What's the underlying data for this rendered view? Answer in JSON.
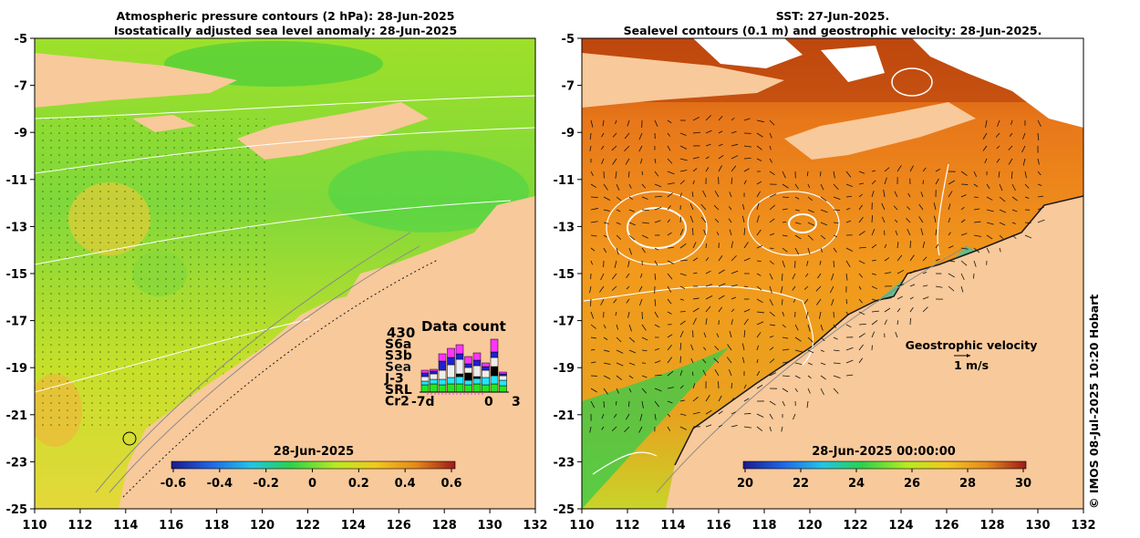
{
  "left_panel": {
    "title_lines": [
      "Atmospheric pressure contours (2 hPa): 28-Jun-2025",
      "Isostatically adjusted sea level anomaly: 28-Jun-2025"
    ],
    "colorbar": {
      "label": "28-Jun-2025",
      "ticks": [
        "-0.6",
        "-0.4",
        "-0.2",
        "0",
        "0.2",
        "0.4",
        "0.6"
      ],
      "colors": [
        "#1a1a8c",
        "#1f66e6",
        "#22c3e6",
        "#2ad24a",
        "#b8ea22",
        "#f2c81e",
        "#e68a1a",
        "#9e1a1a"
      ]
    },
    "data_count": {
      "title": "Data count",
      "max": "430",
      "missions": [
        {
          "name": "S6a",
          "color": "#ff33ff"
        },
        {
          "name": "S3b",
          "color": "#1f1fd6"
        },
        {
          "name": "Sea",
          "color": "#eeeeee"
        },
        {
          "name": "J-3",
          "color": "#000000"
        },
        {
          "name": "SRL",
          "color": "#22e6ff"
        },
        {
          "name": "Cr2",
          "color": "#22e622"
        }
      ],
      "axis": [
        "-7d",
        "0",
        "3"
      ]
    }
  },
  "right_panel": {
    "title_lines": [
      "SST: 27-Jun-2025.",
      "Sealevel contours (0.1 m) and geostrophic velocity: 28-Jun-2025."
    ],
    "colorbar": {
      "label": "28-Jun-2025 00:00:00",
      "ticks": [
        "20",
        "22",
        "24",
        "26",
        "28",
        "30"
      ],
      "colors": [
        "#1a1a8c",
        "#1f66e6",
        "#22c3e6",
        "#2ad24a",
        "#b8ea22",
        "#f2c81e",
        "#e68a1a",
        "#9e1a1a"
      ]
    },
    "velocity_legend": {
      "title": "Geostrophic velocity",
      "scale": "1 m/s"
    }
  },
  "axes": {
    "lat_ticks": [
      "-5",
      "-7",
      "-9",
      "-11",
      "-13",
      "-15",
      "-17",
      "-19",
      "-21",
      "-23",
      "-25"
    ],
    "lon_ticks": [
      "110",
      "112",
      "114",
      "116",
      "118",
      "120",
      "122",
      "124",
      "126",
      "128",
      "130",
      "132"
    ]
  },
  "colors": {
    "land": "#f8c99a",
    "sea_left": "#b4e02a",
    "sea_right": "#f2941c"
  },
  "credit": "© IMOS 08-Jul-2025 10:20 Hobart"
}
